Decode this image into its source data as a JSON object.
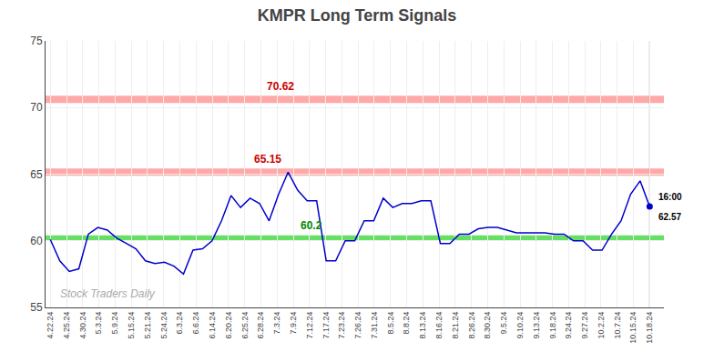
{
  "chart_data": {
    "type": "line",
    "title": "KMPR Long Term Signals",
    "x": [
      0,
      1,
      2,
      3,
      4,
      5,
      6,
      7,
      8,
      9,
      10,
      11,
      12,
      13,
      14,
      15,
      16,
      17,
      18,
      19,
      20,
      21,
      22,
      23,
      24,
      25,
      26,
      27,
      28,
      29,
      30,
      31,
      32,
      33,
      34,
      35,
      36,
      37,
      38,
      39,
      40,
      41,
      42,
      43,
      44,
      45,
      46,
      47,
      48,
      49,
      50,
      51,
      52,
      53,
      54,
      55,
      56,
      57,
      58,
      59,
      60,
      61,
      62,
      63
    ],
    "series": [
      {
        "name": "KMPR",
        "color": "#0000cc",
        "marker": "circle",
        "values": [
          60.1,
          58.5,
          57.7,
          57.9,
          60.5,
          61.0,
          60.8,
          60.2,
          59.8,
          59.4,
          58.5,
          58.3,
          58.4,
          58.1,
          57.5,
          59.3,
          59.4,
          60.0,
          61.5,
          63.4,
          62.5,
          63.2,
          62.8,
          61.5,
          63.5,
          65.15,
          63.8,
          63.0,
          63.0,
          58.5,
          58.5,
          60.0,
          60.0,
          61.5,
          61.5,
          63.2,
          62.5,
          62.8,
          62.8,
          63.0,
          63.0,
          59.8,
          59.8,
          60.5,
          60.5,
          60.9,
          61.0,
          61.0,
          60.8,
          60.6,
          60.6,
          60.6,
          60.6,
          60.5,
          60.5,
          60.0,
          60.0,
          59.3,
          59.3,
          60.5,
          61.5,
          63.5,
          64.5,
          62.57
        ]
      }
    ],
    "xlim": [
      -0.5,
      64.5
    ],
    "xticks": [
      {
        "value": 0,
        "label": "4.22.24"
      },
      {
        "value": 1.7027027,
        "label": "4.25.24"
      },
      {
        "value": 3.4054054,
        "label": "4.30.24"
      },
      {
        "value": 5.1081081,
        "label": "5.3.24"
      },
      {
        "value": 6.8108108,
        "label": "5.9.24"
      },
      {
        "value": 8.5135135,
        "label": "5.15.24"
      },
      {
        "value": 10.2162162,
        "label": "5.21.24"
      },
      {
        "value": 11.9189189,
        "label": "5.24.24"
      },
      {
        "value": 13.6216216,
        "label": "6.3.24"
      },
      {
        "value": 15.3243243,
        "label": "6.6.24"
      },
      {
        "value": 17.027027,
        "label": "6.14.24"
      },
      {
        "value": 18.7297297,
        "label": "6.20.24"
      },
      {
        "value": 20.4324324,
        "label": "6.25.24"
      },
      {
        "value": 22.1351351,
        "label": "6.28.24"
      },
      {
        "value": 23.8378378,
        "label": "7.3.24"
      },
      {
        "value": 25.5405405,
        "label": "7.9.24"
      },
      {
        "value": 27.2432432,
        "label": "7.12.24"
      },
      {
        "value": 28.9459459,
        "label": "7.17.24"
      },
      {
        "value": 30.6486486,
        "label": "7.23.24"
      },
      {
        "value": 32.3513514,
        "label": "7.26.24"
      },
      {
        "value": 34.0540541,
        "label": "7.31.24"
      },
      {
        "value": 35.7567568,
        "label": "8.5.24"
      },
      {
        "value": 37.4594595,
        "label": "8.8.24"
      },
      {
        "value": 39.1621622,
        "label": "8.13.24"
      },
      {
        "value": 40.8648649,
        "label": "8.16.24"
      },
      {
        "value": 42.5675676,
        "label": "8.21.24"
      },
      {
        "value": 44.2702703,
        "label": "8.26.24"
      },
      {
        "value": 45.972973,
        "label": "8.30.24"
      },
      {
        "value": 47.6756757,
        "label": "9.5.24"
      },
      {
        "value": 49.3783784,
        "label": "9.10.24"
      },
      {
        "value": 51.0810811,
        "label": "9.13.24"
      },
      {
        "value": 52.7837838,
        "label": "9.18.24"
      },
      {
        "value": 54.4864865,
        "label": "9.24.24"
      },
      {
        "value": 56.1891892,
        "label": "9.27.24"
      },
      {
        "value": 57.8918919,
        "label": "10.2.24"
      },
      {
        "value": 59.5945946,
        "label": "10.7.24"
      },
      {
        "value": 61.2972973,
        "label": "10.15.24"
      },
      {
        "value": 63,
        "label": "10.18.24"
      }
    ],
    "ylim": [
      55,
      75
    ],
    "yticks": [
      55,
      60,
      65,
      70,
      75
    ],
    "grid": true,
    "hlines": [
      {
        "value": 70.62,
        "label": "70.62",
        "color": "#ff9999",
        "label_color": "#cc0000"
      },
      {
        "value": 65.15,
        "label": "65.15",
        "color": "#ff9999",
        "label_color": "#cc0000"
      },
      {
        "value": 60.2,
        "label": "60.2",
        "color": "#00cc00",
        "label_color": "#008800"
      }
    ],
    "last_point_labels": [
      "16:00",
      "62.57"
    ],
    "watermark": "Stock Traders Daily"
  }
}
